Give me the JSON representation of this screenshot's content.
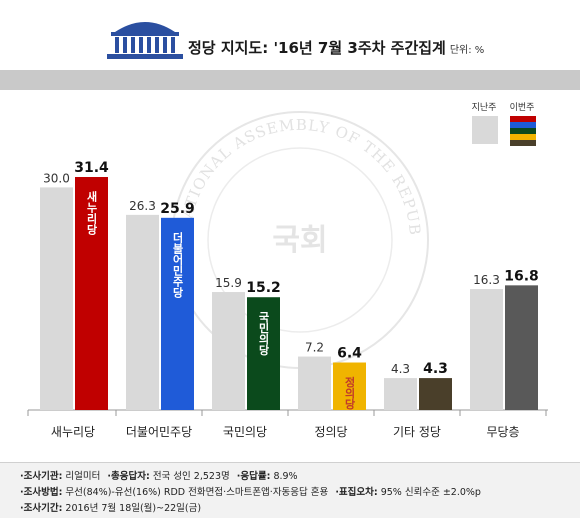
{
  "header": {
    "title": "정당 지지도: '16년 7월 3주차 주간집계",
    "unit": "단위: %"
  },
  "watermark": {
    "seal_text": "NATIONAL ASSEMBLY OF THE REPUBLIC OF KOREA",
    "center_text": "국회"
  },
  "chart_data": {
    "type": "bar",
    "categories": [
      "새누리당",
      "더불어민주당",
      "국민의당",
      "정의당",
      "기타 정당",
      "무당층"
    ],
    "series": [
      {
        "name": "지난주",
        "values": [
          30.0,
          26.3,
          15.9,
          7.2,
          4.3,
          16.3
        ],
        "labels": [
          "30.0",
          "26.3",
          "15.9",
          "7.2",
          "4.3",
          "16.3"
        ]
      },
      {
        "name": "이번주",
        "values": [
          31.4,
          25.9,
          15.2,
          6.4,
          4.3,
          16.8
        ],
        "labels": [
          "31.4",
          "25.9",
          "15.2",
          "6.4",
          "4.3",
          "16.8"
        ]
      }
    ],
    "bar_logos": [
      "새누리당",
      "더불어민주당",
      "국민의당",
      "정의당",
      "",
      ""
    ],
    "ylim": [
      0,
      35
    ],
    "grid": false,
    "legend": "top-right",
    "colors": {
      "previous": "#d9d9d9",
      "current": [
        "#c00000",
        "#1f5bd8",
        "#0b4a1c",
        "#f0b400",
        "#4a3f2a",
        "#595959"
      ],
      "legend_current_stripes": [
        "#c00000",
        "#1f5bd8",
        "#0b4a1c",
        "#f0b400",
        "#4a3f2a"
      ]
    }
  },
  "footer": [
    {
      "label": "·조사기관:",
      "value": "리얼미터",
      "label2": "·총응답자:",
      "value2": "전국 성인 2,523명",
      "label3": "·응답률:",
      "value3": "8.9%"
    },
    {
      "label": "·조사방법:",
      "value": "무선(84%)-유선(16%) RDD 전화면접·스마트폰앱·자동응답 혼용",
      "label2": "·표집오차:",
      "value2": "95% 신뢰수준 ±2.0%p",
      "label3": "",
      "value3": ""
    },
    {
      "label": "·조사기간:",
      "value": "2016년 7월 18일(월)~22일(금)",
      "label2": "",
      "value2": "",
      "label3": "",
      "value3": ""
    }
  ]
}
